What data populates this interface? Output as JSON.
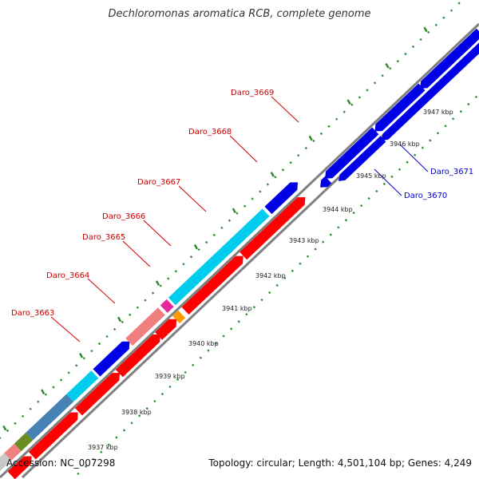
{
  "title": "Dechloromonas aromatica RCB, complete genome",
  "footer": {
    "accession_label": "Accession: NC_007298",
    "summary": "Topology: circular; Length: 4,501,104 bp; Genes: 4,249"
  },
  "colors": {
    "backbone": "#808080",
    "tick": "#2e8b2e",
    "label_red": "#cc0000",
    "label_blue": "#0000cc",
    "red": "#ff0000",
    "blue": "#0000e6",
    "cyan": "#00ccee",
    "salmon": "#f08080",
    "steelblue": "#4682b4",
    "olive": "#6b8e23",
    "magenta": "#e6289c",
    "orange": "#ff9900",
    "grey": "#c8c8c8"
  },
  "kbp_ticks": [
    "3937 kbp",
    "3938 kbp",
    "3939 kbp",
    "3940 kbp",
    "3941 kbp",
    "3942 kbp",
    "3943 kbp",
    "3944 kbp",
    "3945 kbp",
    "3946 kbp",
    "3947 kbp"
  ],
  "gene_labels": [
    {
      "text": "Daro_3663",
      "color": "red"
    },
    {
      "text": "Daro_3664",
      "color": "red"
    },
    {
      "text": "Daro_3665",
      "color": "red"
    },
    {
      "text": "Daro_3666",
      "color": "red"
    },
    {
      "text": "Daro_3667",
      "color": "red"
    },
    {
      "text": "Daro_3668",
      "color": "red"
    },
    {
      "text": "Daro_3669",
      "color": "red"
    },
    {
      "text": "Daro_3670",
      "color": "blue"
    },
    {
      "text": "Daro_3671",
      "color": "blue"
    }
  ]
}
